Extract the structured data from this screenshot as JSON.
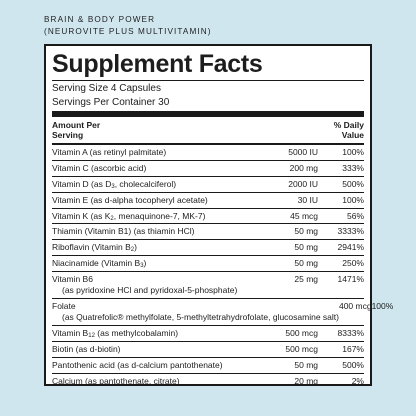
{
  "brand": {
    "line1": "BRAIN & BODY POWER",
    "line2": "(NEUROVITE PLUS MULTIVITAMIN)"
  },
  "facts": {
    "title": "Supplement Facts",
    "serving_size": "Serving Size 4 Capsules",
    "servings_per_container": "Servings Per Container 30",
    "col_amount": "Amount Per Serving",
    "col_dv": "% Daily Value"
  },
  "rows": [
    {
      "pre": "Vitamin A (as retinyl palmitate)",
      "amount": "5000 IU",
      "dv": "100%"
    },
    {
      "pre": "Vitamin C (ascorbic acid)",
      "amount": "200 mg",
      "dv": "333%"
    },
    {
      "pre": "Vitamin D (as D",
      "sub": "3",
      "post": ", cholecalciferol)",
      "amount": "2000 IU",
      "dv": "500%"
    },
    {
      "pre": "Vitamin E (as d-alpha tocopheryl acetate)",
      "amount": "30 IU",
      "dv": "100%"
    },
    {
      "pre": "Vitamin K (as K",
      "sub": "2",
      "post": ", menaquinone-7, MK-7)",
      "amount": "45 mcg",
      "dv": "56%"
    },
    {
      "pre": "Thiamin (Vitamin B1) (as thiamin HCl)",
      "amount": "50 mg",
      "dv": "3333%"
    },
    {
      "pre": "Riboflavin (Vitamin B",
      "sub": "2",
      "post": ")",
      "amount": "50 mg",
      "dv": "2941%"
    },
    {
      "pre": "Niacinamide (Vitamin B",
      "sub": "3",
      "post": ")",
      "amount": "50 mg",
      "dv": "250%"
    },
    {
      "pre": "Vitamin B6",
      "line2": "(as pyridoxine HCl and pyridoxal-5-phosphate)",
      "amount": "25 mg",
      "dv": "1471%"
    },
    {
      "pre": "Folate",
      "line2": "(as Quatrefolic® methylfolate, 5-methyltetrahydrofolate, glucosamine salt)",
      "amount": "400 mcg",
      "dv": "100%"
    },
    {
      "pre": "Vitamin B",
      "sub": "12",
      "post": " (as methylcobalamin)",
      "amount": "500 mcg",
      "dv": "8333%"
    },
    {
      "pre": "Biotin (as d-biotin)",
      "amount": "500 mcg",
      "dv": "167%"
    },
    {
      "pre": "Pantothenic acid (as d-calcium pantothenate)",
      "amount": "50 mg",
      "dv": "500%"
    },
    {
      "pre": "Calcium (as pantothenate, citrate)",
      "amount": "20 mg",
      "dv": "2%"
    }
  ]
}
